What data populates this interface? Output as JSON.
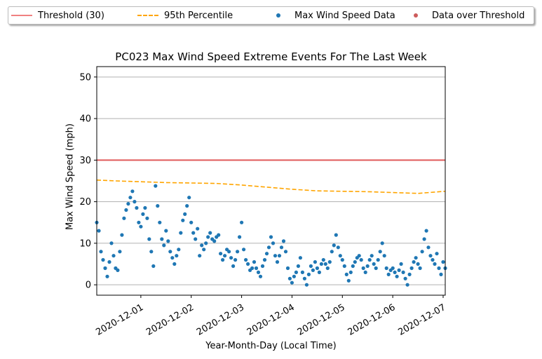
{
  "chart_data": {
    "type": "scatter",
    "title": "PC023 Max Wind Speed Extreme Events For The Last Week",
    "xlabel": "Year-Month-Day (Local Time)",
    "ylabel": "Max Wind Speed (mph)",
    "ylim": [
      -2.5,
      52.5
    ],
    "xlim": [
      "2020-11-30T03:00",
      "2020-12-07T01:00"
    ],
    "y_ticks": [
      0,
      10,
      20,
      30,
      40,
      50
    ],
    "x_ticks": [
      "2020-12-01",
      "2020-12-02",
      "2020-12-03",
      "2020-12-04",
      "2020-12-05",
      "2020-12-06",
      "2020-12-07"
    ],
    "grid": "horizontal",
    "legend_position": "top, above plot",
    "threshold": {
      "name": "Threshold (30)",
      "value": 30,
      "color": "#f08080"
    },
    "percentile_95": {
      "name": "95th Percentile",
      "color": "#ffa500",
      "points": [
        [
          "2020-11-30T03:00",
          25.2
        ],
        [
          "2020-11-30T12:00",
          25.0
        ],
        [
          "2020-12-01T00:00",
          24.8
        ],
        [
          "2020-12-01T12:00",
          24.6
        ],
        [
          "2020-12-02T00:00",
          24.5
        ],
        [
          "2020-12-02T12:00",
          24.4
        ],
        [
          "2020-12-03T00:00",
          24.0
        ],
        [
          "2020-12-03T12:00",
          23.5
        ],
        [
          "2020-12-04T00:00",
          23.0
        ],
        [
          "2020-12-04T12:00",
          22.6
        ],
        [
          "2020-12-05T00:00",
          22.5
        ],
        [
          "2020-12-05T12:00",
          22.4
        ],
        [
          "2020-12-06T00:00",
          22.2
        ],
        [
          "2020-12-06T12:00",
          22.0
        ],
        [
          "2020-12-07T01:00",
          22.5
        ]
      ]
    },
    "series": [
      {
        "name": "Max Wind Speed Data",
        "color": "#1f77b4",
        "points": [
          [
            "2020-11-30T03:00",
            15.0
          ],
          [
            "2020-11-30T04:00",
            13.0
          ],
          [
            "2020-11-30T05:00",
            8.0
          ],
          [
            "2020-11-30T06:00",
            6.0
          ],
          [
            "2020-11-30T07:00",
            4.0
          ],
          [
            "2020-11-30T08:00",
            2.0
          ],
          [
            "2020-11-30T09:00",
            5.5
          ],
          [
            "2020-11-30T10:00",
            10.0
          ],
          [
            "2020-11-30T11:00",
            7.0
          ],
          [
            "2020-11-30T12:00",
            4.0
          ],
          [
            "2020-11-30T13:00",
            3.5
          ],
          [
            "2020-11-30T14:00",
            8.0
          ],
          [
            "2020-11-30T15:00",
            12.0
          ],
          [
            "2020-11-30T16:00",
            16.0
          ],
          [
            "2020-11-30T17:00",
            18.0
          ],
          [
            "2020-11-30T18:00",
            19.5
          ],
          [
            "2020-11-30T19:00",
            21.0
          ],
          [
            "2020-11-30T20:00",
            22.5
          ],
          [
            "2020-11-30T21:00",
            20.0
          ],
          [
            "2020-11-30T22:00",
            18.5
          ],
          [
            "2020-11-30T23:00",
            15.0
          ],
          [
            "2020-12-01T00:00",
            14.0
          ],
          [
            "2020-12-01T01:00",
            17.0
          ],
          [
            "2020-12-01T02:00",
            18.5
          ],
          [
            "2020-12-01T03:00",
            16.0
          ],
          [
            "2020-12-01T04:00",
            11.0
          ],
          [
            "2020-12-01T05:00",
            8.0
          ],
          [
            "2020-12-01T06:00",
            4.5
          ],
          [
            "2020-12-01T07:00",
            23.8
          ],
          [
            "2020-12-01T08:00",
            19.0
          ],
          [
            "2020-12-01T09:00",
            15.0
          ],
          [
            "2020-12-01T10:00",
            11.0
          ],
          [
            "2020-12-01T11:00",
            9.5
          ],
          [
            "2020-12-01T12:00",
            13.0
          ],
          [
            "2020-12-01T13:00",
            10.5
          ],
          [
            "2020-12-01T14:00",
            8.0
          ],
          [
            "2020-12-01T15:00",
            6.5
          ],
          [
            "2020-12-01T16:00",
            5.0
          ],
          [
            "2020-12-01T17:00",
            7.0
          ],
          [
            "2020-12-01T18:00",
            8.5
          ],
          [
            "2020-12-01T19:00",
            12.5
          ],
          [
            "2020-12-01T20:00",
            15.5
          ],
          [
            "2020-12-01T21:00",
            17.0
          ],
          [
            "2020-12-01T22:00",
            19.0
          ],
          [
            "2020-12-01T23:00",
            21.0
          ],
          [
            "2020-12-02T00:00",
            15.0
          ],
          [
            "2020-12-02T01:00",
            12.5
          ],
          [
            "2020-12-02T02:00",
            11.0
          ],
          [
            "2020-12-02T03:00",
            13.5
          ],
          [
            "2020-12-02T04:00",
            7.0
          ],
          [
            "2020-12-02T05:00",
            9.5
          ],
          [
            "2020-12-02T06:00",
            8.5
          ],
          [
            "2020-12-02T07:00",
            10.0
          ],
          [
            "2020-12-02T08:00",
            11.5
          ],
          [
            "2020-12-02T09:00",
            12.5
          ],
          [
            "2020-12-02T10:00",
            11.0
          ],
          [
            "2020-12-02T11:00",
            10.5
          ],
          [
            "2020-12-02T12:00",
            11.5
          ],
          [
            "2020-12-02T13:00",
            12.0
          ],
          [
            "2020-12-02T14:00",
            7.5
          ],
          [
            "2020-12-02T15:00",
            6.0
          ],
          [
            "2020-12-02T16:00",
            7.0
          ],
          [
            "2020-12-02T17:00",
            8.5
          ],
          [
            "2020-12-02T18:00",
            8.0
          ],
          [
            "2020-12-02T19:00",
            6.5
          ],
          [
            "2020-12-02T20:00",
            4.5
          ],
          [
            "2020-12-02T21:00",
            6.0
          ],
          [
            "2020-12-02T22:00",
            8.0
          ],
          [
            "2020-12-02T23:00",
            11.5
          ],
          [
            "2020-12-03T00:00",
            15.0
          ],
          [
            "2020-12-03T01:00",
            8.5
          ],
          [
            "2020-12-03T02:00",
            6.0
          ],
          [
            "2020-12-03T03:00",
            5.0
          ],
          [
            "2020-12-03T04:00",
            3.5
          ],
          [
            "2020-12-03T05:00",
            4.0
          ],
          [
            "2020-12-03T06:00",
            5.5
          ],
          [
            "2020-12-03T07:00",
            4.0
          ],
          [
            "2020-12-03T08:00",
            3.0
          ],
          [
            "2020-12-03T09:00",
            2.0
          ],
          [
            "2020-12-03T10:00",
            4.5
          ],
          [
            "2020-12-03T11:00",
            6.0
          ],
          [
            "2020-12-03T12:00",
            7.5
          ],
          [
            "2020-12-03T13:00",
            9.0
          ],
          [
            "2020-12-03T14:00",
            11.5
          ],
          [
            "2020-12-03T15:00",
            10.0
          ],
          [
            "2020-12-03T16:00",
            7.0
          ],
          [
            "2020-12-03T17:00",
            5.5
          ],
          [
            "2020-12-03T18:00",
            7.0
          ],
          [
            "2020-12-03T19:00",
            9.0
          ],
          [
            "2020-12-03T20:00",
            10.5
          ],
          [
            "2020-12-03T21:00",
            8.0
          ],
          [
            "2020-12-03T22:00",
            4.0
          ],
          [
            "2020-12-03T23:00",
            1.5
          ],
          [
            "2020-12-04T00:00",
            0.5
          ],
          [
            "2020-12-04T01:00",
            2.0
          ],
          [
            "2020-12-04T02:00",
            3.0
          ],
          [
            "2020-12-04T03:00",
            4.5
          ],
          [
            "2020-12-04T04:00",
            6.5
          ],
          [
            "2020-12-04T05:00",
            3.0
          ],
          [
            "2020-12-04T06:00",
            1.5
          ],
          [
            "2020-12-04T07:00",
            0.0
          ],
          [
            "2020-12-04T08:00",
            2.5
          ],
          [
            "2020-12-04T09:00",
            4.5
          ],
          [
            "2020-12-04T10:00",
            3.5
          ],
          [
            "2020-12-04T11:00",
            5.5
          ],
          [
            "2020-12-04T12:00",
            4.0
          ],
          [
            "2020-12-04T13:00",
            3.0
          ],
          [
            "2020-12-04T14:00",
            5.0
          ],
          [
            "2020-12-04T15:00",
            6.0
          ],
          [
            "2020-12-04T16:00",
            5.0
          ],
          [
            "2020-12-04T17:00",
            4.0
          ],
          [
            "2020-12-04T18:00",
            5.5
          ],
          [
            "2020-12-04T19:00",
            8.0
          ],
          [
            "2020-12-04T20:00",
            9.5
          ],
          [
            "2020-12-04T21:00",
            12.0
          ],
          [
            "2020-12-04T22:00",
            9.0
          ],
          [
            "2020-12-04T23:00",
            7.0
          ],
          [
            "2020-12-05T00:00",
            6.0
          ],
          [
            "2020-12-05T01:00",
            4.5
          ],
          [
            "2020-12-05T02:00",
            2.5
          ],
          [
            "2020-12-05T03:00",
            1.0
          ],
          [
            "2020-12-05T04:00",
            3.0
          ],
          [
            "2020-12-05T05:00",
            4.5
          ],
          [
            "2020-12-05T06:00",
            5.5
          ],
          [
            "2020-12-05T07:00",
            6.5
          ],
          [
            "2020-12-05T08:00",
            7.0
          ],
          [
            "2020-12-05T09:00",
            6.0
          ],
          [
            "2020-12-05T10:00",
            4.0
          ],
          [
            "2020-12-05T11:00",
            3.0
          ],
          [
            "2020-12-05T12:00",
            4.5
          ],
          [
            "2020-12-05T13:00",
            6.0
          ],
          [
            "2020-12-05T14:00",
            7.0
          ],
          [
            "2020-12-05T15:00",
            5.0
          ],
          [
            "2020-12-05T16:00",
            4.0
          ],
          [
            "2020-12-05T17:00",
            6.0
          ],
          [
            "2020-12-05T18:00",
            8.0
          ],
          [
            "2020-12-05T19:00",
            10.0
          ],
          [
            "2020-12-05T20:00",
            7.0
          ],
          [
            "2020-12-05T21:00",
            4.0
          ],
          [
            "2020-12-05T22:00",
            2.5
          ],
          [
            "2020-12-05T23:00",
            3.5
          ],
          [
            "2020-12-06T00:00",
            4.0
          ],
          [
            "2020-12-06T01:00",
            3.0
          ],
          [
            "2020-12-06T02:00",
            2.0
          ],
          [
            "2020-12-06T03:00",
            3.5
          ],
          [
            "2020-12-06T04:00",
            5.0
          ],
          [
            "2020-12-06T05:00",
            3.0
          ],
          [
            "2020-12-06T06:00",
            1.5
          ],
          [
            "2020-12-06T07:00",
            0.0
          ],
          [
            "2020-12-06T08:00",
            2.5
          ],
          [
            "2020-12-06T09:00",
            4.0
          ],
          [
            "2020-12-06T10:00",
            5.5
          ],
          [
            "2020-12-06T11:00",
            6.5
          ],
          [
            "2020-12-06T12:00",
            5.0
          ],
          [
            "2020-12-06T13:00",
            4.0
          ],
          [
            "2020-12-06T14:00",
            8.0
          ],
          [
            "2020-12-06T15:00",
            11.0
          ],
          [
            "2020-12-06T16:00",
            13.0
          ],
          [
            "2020-12-06T17:00",
            9.0
          ],
          [
            "2020-12-06T18:00",
            7.0
          ],
          [
            "2020-12-06T19:00",
            6.0
          ],
          [
            "2020-12-06T20:00",
            5.0
          ],
          [
            "2020-12-06T21:00",
            7.5
          ],
          [
            "2020-12-06T22:00",
            4.0
          ],
          [
            "2020-12-06T23:00",
            2.5
          ],
          [
            "2020-12-07T00:00",
            5.5
          ],
          [
            "2020-12-07T01:00",
            4.0
          ]
        ]
      },
      {
        "name": "Data over Threshold",
        "color": "#cd5c5c",
        "points": []
      }
    ]
  }
}
